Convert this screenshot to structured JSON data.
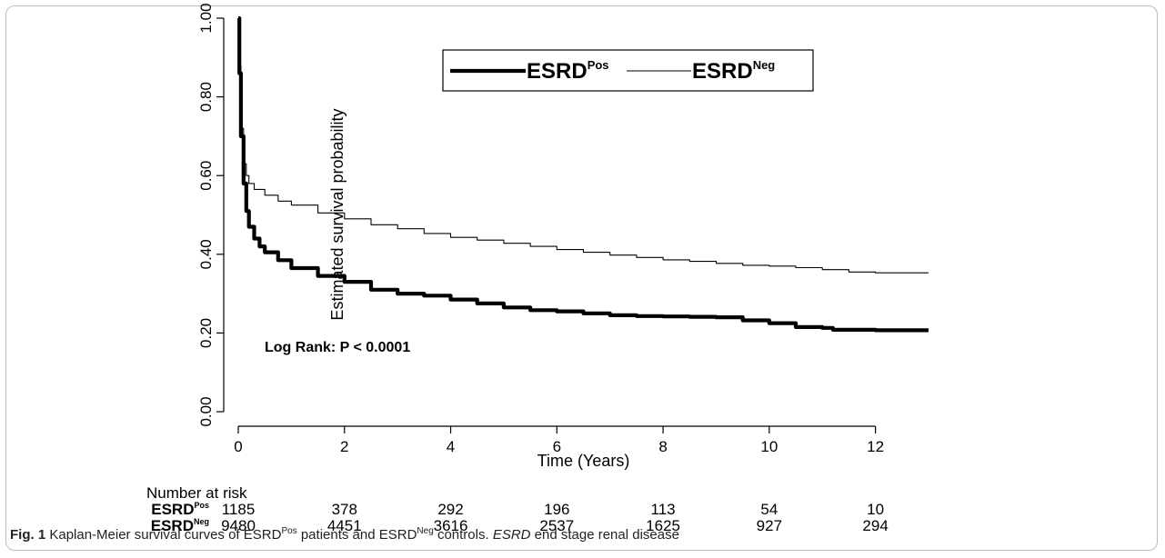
{
  "caption": {
    "label": "Fig. 1",
    "part1": "Kaplan-Meier survival curves of ESRD",
    "sup1": "Pos",
    "part2": " patients and ESRD",
    "sup2": "Neg",
    "part3": " controls. ",
    "abbr": "ESRD",
    "part4": " end stage renal disease"
  },
  "chart_data": {
    "type": "line",
    "xlabel": "Time (Years)",
    "ylabel": "Estimated survival probability",
    "xlim": [
      0,
      13
    ],
    "ylim": [
      0,
      1
    ],
    "x_ticks": [
      0,
      2,
      4,
      6,
      8,
      10,
      12
    ],
    "x_tick_labels": [
      "0",
      "2",
      "4",
      "6",
      "8",
      "10",
      "12"
    ],
    "y_ticks": [
      0,
      0.2,
      0.4,
      0.6,
      0.8,
      1.0
    ],
    "y_tick_labels": [
      "0.00",
      "0.20",
      "0.40",
      "0.60",
      "0.80",
      "1.00"
    ],
    "annotation": "Log Rank: P < 0.0001",
    "legend": {
      "placement": "top",
      "entries": [
        {
          "base": "ESRD",
          "sup": "Pos",
          "style": "thick"
        },
        {
          "base": "ESRD",
          "sup": "Neg",
          "style": "thin"
        }
      ]
    },
    "series": [
      {
        "label_base": "ESRD",
        "label_sup": "Pos",
        "color": "#000000",
        "width": "thick",
        "points": [
          [
            0,
            1.0
          ],
          [
            0.02,
            0.86
          ],
          [
            0.05,
            0.7
          ],
          [
            0.1,
            0.58
          ],
          [
            0.15,
            0.51
          ],
          [
            0.2,
            0.47
          ],
          [
            0.3,
            0.44
          ],
          [
            0.4,
            0.42
          ],
          [
            0.5,
            0.405
          ],
          [
            0.75,
            0.385
          ],
          [
            1,
            0.365
          ],
          [
            1.5,
            0.345
          ],
          [
            2,
            0.33
          ],
          [
            2.5,
            0.31
          ],
          [
            3,
            0.3
          ],
          [
            3.5,
            0.295
          ],
          [
            4,
            0.285
          ],
          [
            4.5,
            0.275
          ],
          [
            5,
            0.265
          ],
          [
            5.5,
            0.258
          ],
          [
            6,
            0.255
          ],
          [
            6.5,
            0.25
          ],
          [
            7,
            0.245
          ],
          [
            7.5,
            0.243
          ],
          [
            8,
            0.242
          ],
          [
            8.5,
            0.241
          ],
          [
            9,
            0.24
          ],
          [
            9.5,
            0.232
          ],
          [
            10,
            0.225
          ],
          [
            10.5,
            0.215
          ],
          [
            11,
            0.213
          ],
          [
            11.2,
            0.208
          ],
          [
            12,
            0.207
          ],
          [
            13,
            0.207
          ]
        ]
      },
      {
        "label_base": "ESRD",
        "label_sup": "Neg",
        "color": "#000000",
        "width": "thin",
        "points": [
          [
            0,
            1.0
          ],
          [
            0.02,
            0.88
          ],
          [
            0.05,
            0.72
          ],
          [
            0.1,
            0.63
          ],
          [
            0.15,
            0.6
          ],
          [
            0.2,
            0.58
          ],
          [
            0.3,
            0.565
          ],
          [
            0.5,
            0.55
          ],
          [
            0.75,
            0.535
          ],
          [
            1,
            0.525
          ],
          [
            1.5,
            0.505
          ],
          [
            2,
            0.49
          ],
          [
            2.5,
            0.475
          ],
          [
            3,
            0.465
          ],
          [
            3.5,
            0.453
          ],
          [
            4,
            0.443
          ],
          [
            4.5,
            0.436
          ],
          [
            5,
            0.428
          ],
          [
            5.5,
            0.42
          ],
          [
            6,
            0.412
          ],
          [
            6.5,
            0.405
          ],
          [
            7,
            0.398
          ],
          [
            7.5,
            0.392
          ],
          [
            8,
            0.386
          ],
          [
            8.5,
            0.382
          ],
          [
            9,
            0.377
          ],
          [
            9.5,
            0.372
          ],
          [
            10,
            0.37
          ],
          [
            10.5,
            0.366
          ],
          [
            11,
            0.361
          ],
          [
            11.5,
            0.355
          ],
          [
            12,
            0.353
          ],
          [
            13,
            0.353
          ]
        ]
      }
    ],
    "risk_table": {
      "title": "Number at risk",
      "times": [
        0,
        2,
        4,
        6,
        8,
        10,
        12
      ],
      "rows": [
        {
          "label_base": "ESRD",
          "label_sup": "Pos",
          "values": [
            "1185",
            "378",
            "292",
            "196",
            "113",
            "54",
            "10"
          ]
        },
        {
          "label_base": "ESRD",
          "label_sup": "Neg",
          "values": [
            "9480",
            "4451",
            "3616",
            "2537",
            "1625",
            "927",
            "294"
          ]
        }
      ]
    }
  }
}
